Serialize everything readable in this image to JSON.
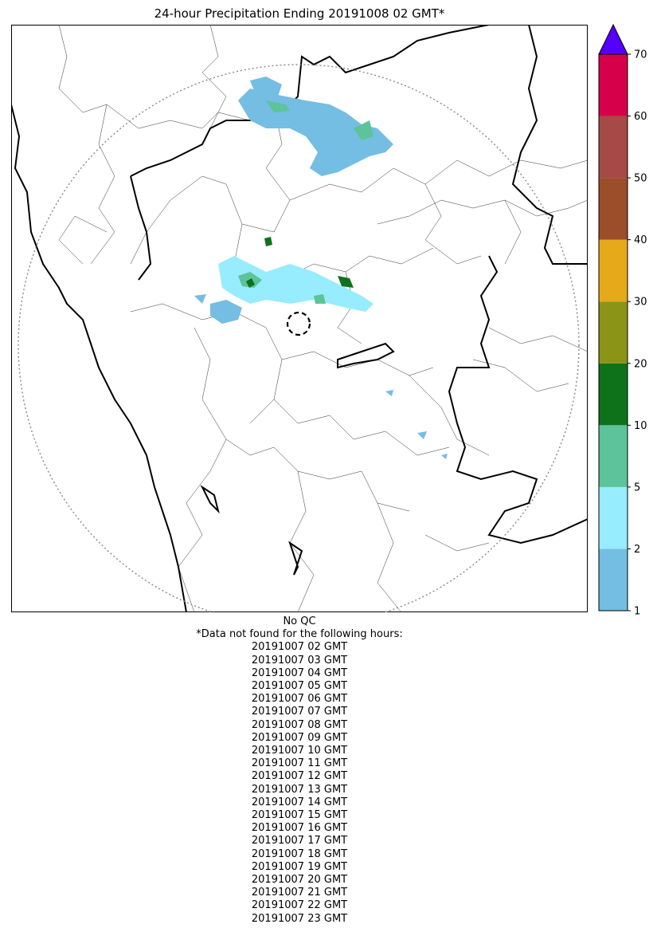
{
  "title": "24-hour Precipitation Ending 20191008 02 GMT*",
  "map": {
    "region": "radar coverage area, state and district boundaries",
    "radar_center_marker": "dashed-circle",
    "range_ring": "dotted-circle",
    "precip_present": true
  },
  "colorbar": {
    "ticks": [
      "1",
      "2",
      "5",
      "10",
      "20",
      "30",
      "40",
      "50",
      "60",
      "70"
    ],
    "bins": [
      {
        "range": "1-2",
        "color": "#74bde3"
      },
      {
        "range": "2-5",
        "color": "#97ecfd"
      },
      {
        "range": "5-10",
        "color": "#5cc39a"
      },
      {
        "range": "10-20",
        "color": "#0e721a"
      },
      {
        "range": "20-30",
        "color": "#8c9418"
      },
      {
        "range": "30-40",
        "color": "#e6a91a"
      },
      {
        "range": "40-50",
        "color": "#9c4e2a"
      },
      {
        "range": "50-60",
        "color": "#a54a45"
      },
      {
        "range": "60-70",
        "color": "#d6004a"
      }
    ],
    "extend_color": "#5500ff"
  },
  "footer": {
    "qc": "No QC",
    "note": "*Data not found for the following hours:",
    "missing_hours": [
      "20191007 02 GMT",
      "20191007 03 GMT",
      "20191007 04 GMT",
      "20191007 05 GMT",
      "20191007 06 GMT",
      "20191007 07 GMT",
      "20191007 08 GMT",
      "20191007 09 GMT",
      "20191007 10 GMT",
      "20191007 11 GMT",
      "20191007 12 GMT",
      "20191007 13 GMT",
      "20191007 14 GMT",
      "20191007 15 GMT",
      "20191007 16 GMT",
      "20191007 17 GMT",
      "20191007 18 GMT",
      "20191007 19 GMT",
      "20191007 20 GMT",
      "20191007 21 GMT",
      "20191007 22 GMT",
      "20191007 23 GMT"
    ]
  }
}
